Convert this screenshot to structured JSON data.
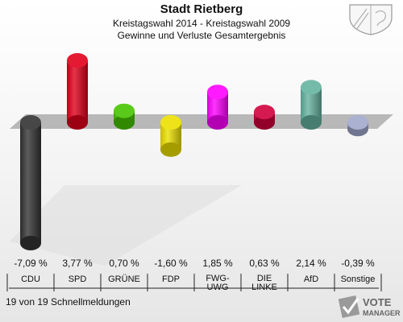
{
  "header": {
    "title": "Stadt Rietberg",
    "subtitle": "Kreistagswahl 2014 - Kreistagswahl 2009",
    "subtitle2": "Gewinne und Verluste Gesamtergebnis"
  },
  "footer": {
    "text": "19 von 19 Schnellmeldungen"
  },
  "logo": {
    "line1": "VOTE",
    "line2": "MANAGER"
  },
  "chart_data": {
    "type": "bar",
    "categories": [
      "CDU",
      "SPD",
      "GRÜNE",
      "FDP",
      "FWG-\nUWG",
      "DIE\nLINKE",
      "AfD",
      "Sonstige"
    ],
    "values": [
      -7.09,
      3.77,
      0.7,
      -1.6,
      1.85,
      0.63,
      2.14,
      -0.39
    ],
    "value_labels": [
      "-7,09 %",
      "3,77 %",
      "0,70 %",
      "-1,60 %",
      "1,85 %",
      "0,63 %",
      "2,14 %",
      "-0,39 %"
    ],
    "colors": [
      "#333333",
      "#e0001a",
      "#46c400",
      "#ece000",
      "#ff00ff",
      "#d0003c",
      "#66b3a0",
      "#a0a8cc"
    ],
    "ylim": [
      -7.09,
      3.77
    ]
  }
}
